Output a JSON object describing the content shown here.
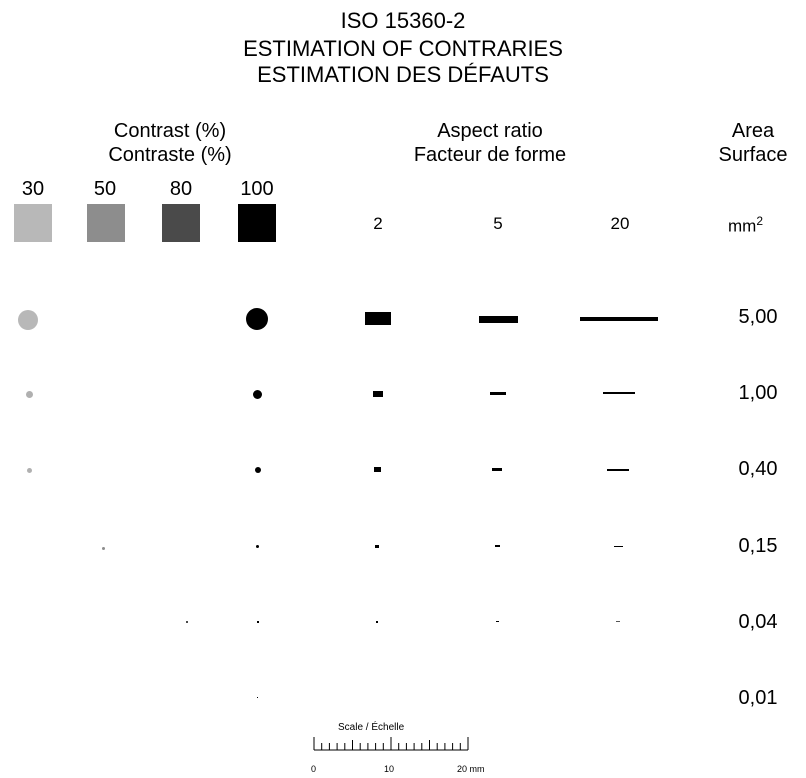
{
  "title": {
    "line1": "ISO 15360-2",
    "line2": "ESTIMATION  OF CONTRARIES",
    "line3": "ESTIMATION DES DÉFAUTS"
  },
  "contrast": {
    "heading_en": "Contrast (%)",
    "heading_fr": "Contraste (%)",
    "levels": [
      "30",
      "50",
      "80",
      "100"
    ],
    "swatch_colors": [
      "#b8b8b8",
      "#8d8d8d",
      "#4a4a4a",
      "#000000"
    ]
  },
  "aspect": {
    "heading_en": "Aspect ratio",
    "heading_fr": "Facteur de forme",
    "ratios": [
      "2",
      "5",
      "20"
    ]
  },
  "area": {
    "heading_en": "Area",
    "heading_fr": "Surface",
    "unit": "mm",
    "unit_exp": "2",
    "values": [
      "5,00",
      "1,00",
      "0,40",
      "0,15",
      "0,04",
      "0,01"
    ]
  },
  "scale": {
    "label": "Scale / Échelle",
    "ticks": [
      "0",
      "10",
      "20 mm"
    ]
  }
}
